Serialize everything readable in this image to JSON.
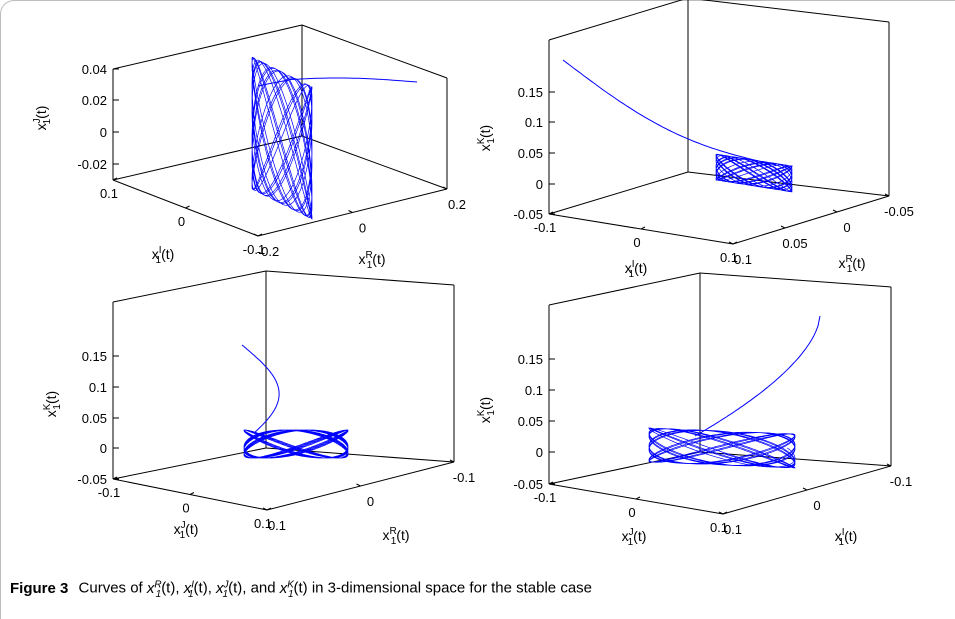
{
  "figure": {
    "caption_label": "Figure 3",
    "caption_text": "Curves of x1R(t), x1I(t), x1J(t), and x1K(t) in 3-dimensional space for the stable case",
    "caption_segments": [
      {
        "t": "Curves of "
      },
      {
        "v": "x",
        "sub": "1",
        "sup": "R"
      },
      {
        "t": "(t), "
      },
      {
        "v": "x",
        "sub": "1",
        "sup": "I"
      },
      {
        "t": "(t), "
      },
      {
        "v": "x",
        "sub": "1",
        "sup": "J"
      },
      {
        "t": "(t), and "
      },
      {
        "v": "x",
        "sub": "1",
        "sup": "K"
      },
      {
        "t": "(t) in 3-dimensional space for the stable case"
      }
    ]
  },
  "colors": {
    "trajectory": "#0000ff",
    "axes": "#000000",
    "frame": "#bdbdbd"
  },
  "chart_data": [
    {
      "type": "line3d",
      "axes": {
        "x": {
          "label": "x1R(t)",
          "ticks": [
            "-0.2",
            "0",
            "0.2"
          ],
          "range": [
            -0.2,
            0.2
          ]
        },
        "y": {
          "label": "x1I(t)",
          "ticks": [
            "-0.1",
            "0",
            "0.1"
          ],
          "range": [
            -0.1,
            0.1
          ]
        },
        "z": {
          "label": "x1J(t)",
          "ticks": [
            "-0.02",
            "0",
            "0.02",
            "0.04"
          ],
          "range": [
            -0.03,
            0.04
          ]
        }
      },
      "description_values": {
        "start": [
          0.18,
          0.09,
          0.035
        ],
        "attractor_center": [
          0.0,
          0.0,
          0.0
        ]
      }
    },
    {
      "type": "line3d",
      "axes": {
        "x": {
          "label": "x1R(t)",
          "ticks": [
            "0.1",
            "0.05",
            "0",
            "-0.05"
          ],
          "range": [
            -0.05,
            0.1
          ]
        },
        "y": {
          "label": "x1I(t)",
          "ticks": [
            "-0.1",
            "0",
            "0.1"
          ],
          "range": [
            -0.1,
            0.1
          ]
        },
        "z": {
          "label": "x1K(t)",
          "ticks": [
            "-0.05",
            "0",
            "0.05",
            "0.1",
            "0.15"
          ],
          "range": [
            -0.05,
            0.2
          ]
        }
      },
      "description_values": {
        "start": [
          0.1,
          -0.1,
          0.2
        ],
        "attractor_center": [
          0.0,
          0.0,
          0.0
        ]
      }
    },
    {
      "type": "line3d",
      "axes": {
        "x": {
          "label": "x1R(t)",
          "ticks": [
            "0.1",
            "-0.1"
          ],
          "range": [
            -0.1,
            0.1
          ]
        },
        "y": {
          "label": "x1J(t)",
          "ticks": [
            "-0.1",
            "0",
            "0.1"
          ],
          "range": [
            -0.1,
            0.1
          ]
        },
        "z": {
          "label": "x1K(t)",
          "ticks": [
            "-0.05",
            "0",
            "0.05",
            "0.1",
            "0.15"
          ],
          "range": [
            -0.05,
            0.2
          ]
        }
      },
      "description_values": {
        "start": [
          0.0,
          0.0,
          0.18
        ],
        "attractor_center": [
          0.0,
          0.0,
          0.0
        ]
      }
    },
    {
      "type": "line3d",
      "axes": {
        "x": {
          "label": "x1I(t)",
          "ticks": [
            "0.1",
            "0",
            "-0.1"
          ],
          "range": [
            -0.1,
            0.1
          ]
        },
        "y": {
          "label": "x1J(t)",
          "ticks": [
            "-0.1",
            "0",
            "0.1"
          ],
          "range": [
            -0.1,
            0.1
          ]
        },
        "z": {
          "label": "x1K(t)",
          "ticks": [
            "-0.05",
            "0",
            "0.05",
            "0.1",
            "0.15"
          ],
          "range": [
            -0.05,
            0.2
          ]
        }
      },
      "description_values": {
        "start": [
          -0.1,
          0.1,
          0.2
        ],
        "attractor_center": [
          0.0,
          0.0,
          0.0
        ]
      }
    }
  ]
}
